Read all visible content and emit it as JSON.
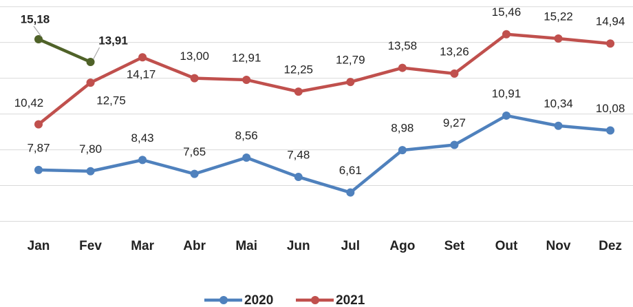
{
  "chart_data": {
    "type": "line",
    "categories": [
      "Jan",
      "Fev",
      "Mar",
      "Abr",
      "Mai",
      "Jun",
      "Jul",
      "Ago",
      "Set",
      "Out",
      "Nov",
      "Dez"
    ],
    "series": [
      {
        "name": "2020",
        "color": "#4f81bd",
        "values": [
          7.87,
          7.8,
          8.43,
          7.65,
          8.56,
          7.48,
          6.61,
          8.98,
          9.27,
          10.91,
          10.34,
          10.08
        ],
        "value_labels": [
          "7,87",
          "7,80",
          "8,43",
          "7,65",
          "8,56",
          "7,48",
          "6,61",
          "8,98",
          "9,27",
          "10,91",
          "10,34",
          "10,08"
        ]
      },
      {
        "name": "2021",
        "color": "#c0504d",
        "values": [
          10.42,
          12.75,
          14.17,
          13.0,
          12.91,
          12.25,
          12.79,
          13.58,
          13.26,
          15.46,
          15.22,
          14.94
        ],
        "value_labels": [
          "10,42",
          "12,75",
          "14,17",
          "13,00",
          "12,91",
          "12,25",
          "12,79",
          "13,58",
          "13,26",
          "15,46",
          "15,22",
          "14,94"
        ]
      },
      {
        "color": "#4f6228",
        "values": [
          15.18,
          13.91,
          null,
          null,
          null,
          null,
          null,
          null,
          null,
          null,
          null,
          null
        ],
        "value_labels": [
          "15,18",
          "13,91",
          null,
          null,
          null,
          null,
          null,
          null,
          null,
          null,
          null,
          null
        ]
      }
    ],
    "ylim": [
      5,
      17
    ],
    "yticks": [
      5,
      7,
      9,
      11,
      13,
      15,
      17
    ],
    "grid": true
  }
}
